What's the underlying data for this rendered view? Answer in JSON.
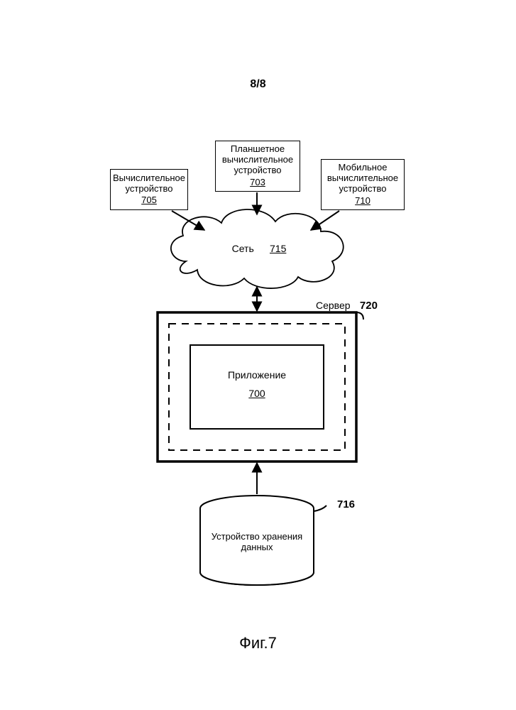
{
  "page": {
    "number": "8/8",
    "caption": "Фиг.7"
  },
  "diagram": {
    "type": "flowchart",
    "colors": {
      "stroke": "#000000",
      "fill": "#ffffff",
      "text": "#000000"
    },
    "line_width": 1.5,
    "nodes": {
      "device_compute": {
        "label": "Вычислительное\nустройство",
        "ref": "705"
      },
      "device_tablet": {
        "label": "Планшетное\nвычислительное\nустройство",
        "ref": "703"
      },
      "device_mobile": {
        "label": "Мобильное\nвычислительное\nустройство",
        "ref": "710"
      },
      "network": {
        "label": "Сеть",
        "ref": "715"
      },
      "server": {
        "label": "Сервер",
        "ref": "720"
      },
      "application": {
        "label": "Приложение",
        "ref": "700"
      },
      "storage": {
        "label": "Устройство хранения\nданных",
        "ref": "716"
      }
    }
  }
}
